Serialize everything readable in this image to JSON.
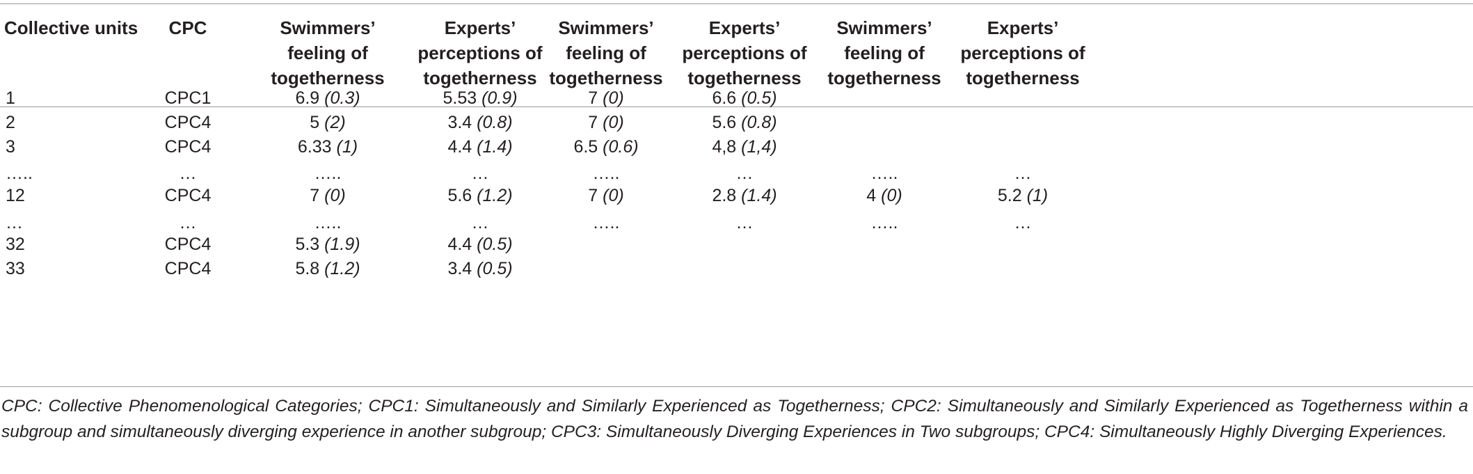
{
  "headers": {
    "collective_units": "Collective units",
    "cpc": "CPC",
    "col3": [
      "Swimmers’",
      "feeling of",
      "togetherness"
    ],
    "col4": [
      "Experts’",
      "perceptions of",
      "togetherness"
    ],
    "col5": [
      "Swimmers’",
      "feeling of",
      "togetherness"
    ],
    "col6": [
      "Experts’",
      "perceptions of",
      "togetherness"
    ],
    "col7": [
      "Swimmers’",
      "feeling of",
      "togetherness"
    ],
    "col8": [
      "Experts’",
      "perceptions of",
      "togetherness"
    ]
  },
  "rows": [
    {
      "unit": "1",
      "cpc": "CPC1",
      "c3": {
        "v": "6.9",
        "sd": "(0.3)"
      },
      "c4": {
        "v": "5.53",
        "sd": "(0.9)"
      },
      "c5": {
        "v": "7",
        "sd": "(0)"
      },
      "c6": {
        "v": "6.6",
        "sd": "(0.5)"
      },
      "c7": {
        "v": "",
        "sd": ""
      },
      "c8": {
        "v": "",
        "sd": ""
      }
    },
    {
      "unit": "2",
      "cpc": "CPC4",
      "c3": {
        "v": "5",
        "sd": "(2)"
      },
      "c4": {
        "v": "3.4",
        "sd": "(0.8)"
      },
      "c5": {
        "v": "7",
        "sd": "(0)"
      },
      "c6": {
        "v": "5.6",
        "sd": "(0.8)"
      },
      "c7": {
        "v": "",
        "sd": ""
      },
      "c8": {
        "v": "",
        "sd": ""
      }
    },
    {
      "unit": "3",
      "cpc": "CPC4",
      "c3": {
        "v": "6.33",
        "sd": "(1)"
      },
      "c4": {
        "v": "4.4",
        "sd": "(1.4)"
      },
      "c5": {
        "v": "6.5",
        "sd": "(0.6)"
      },
      "c6": {
        "v": "4,8",
        "sd": "(1,4)"
      },
      "c7": {
        "v": "",
        "sd": ""
      },
      "c8": {
        "v": "",
        "sd": ""
      }
    },
    {
      "unit": "…..",
      "cpc": "…",
      "c3": {
        "v": "…..",
        "sd": ""
      },
      "c4": {
        "v": "…",
        "sd": ""
      },
      "c5": {
        "v": "…..",
        "sd": ""
      },
      "c6": {
        "v": "…",
        "sd": ""
      },
      "c7": {
        "v": "…..",
        "sd": ""
      },
      "c8": {
        "v": "…",
        "sd": ""
      }
    },
    {
      "unit": "12",
      "cpc": "CPC4",
      "c3": {
        "v": "7",
        "sd": "(0)"
      },
      "c4": {
        "v": "5.6",
        "sd": "(1.2)"
      },
      "c5": {
        "v": "7",
        "sd": "(0)"
      },
      "c6": {
        "v": "2.8",
        "sd": "(1.4)"
      },
      "c7": {
        "v": "4",
        "sd": "(0)"
      },
      "c8": {
        "v": "5.2",
        "sd": "(1)"
      }
    },
    {
      "unit": "…",
      "cpc": "…",
      "c3": {
        "v": "…..",
        "sd": ""
      },
      "c4": {
        "v": "…",
        "sd": ""
      },
      "c5": {
        "v": "…..",
        "sd": ""
      },
      "c6": {
        "v": "…",
        "sd": ""
      },
      "c7": {
        "v": "…..",
        "sd": ""
      },
      "c8": {
        "v": "…",
        "sd": ""
      }
    },
    {
      "unit": "32",
      "cpc": "CPC4",
      "c3": {
        "v": "5.3",
        "sd": "(1.9)"
      },
      "c4": {
        "v": "4.4",
        "sd": "(0.5)"
      },
      "c5": {
        "v": "",
        "sd": ""
      },
      "c6": {
        "v": "",
        "sd": ""
      },
      "c7": {
        "v": "",
        "sd": ""
      },
      "c8": {
        "v": "",
        "sd": ""
      }
    },
    {
      "unit": "33",
      "cpc": "CPC4",
      "c3": {
        "v": "5.8",
        "sd": "(1.2)"
      },
      "c4": {
        "v": "3.4",
        "sd": "(0.5)"
      },
      "c5": {
        "v": "",
        "sd": ""
      },
      "c6": {
        "v": "",
        "sd": ""
      },
      "c7": {
        "v": "",
        "sd": ""
      },
      "c8": {
        "v": "",
        "sd": ""
      }
    }
  ],
  "footnote": "CPC: Collective Phenomenological Categories; CPC1: Simultaneously and Similarly Experienced as Togetherness; CPC2: Simultaneously and Similarly Experienced as Togetherness within a subgroup and simultaneously diverging experience in another subgroup; CPC3: Simultaneously Diverging Experiences in Two subgroups; CPC4: Simultaneously Highly Diverging Experiences."
}
